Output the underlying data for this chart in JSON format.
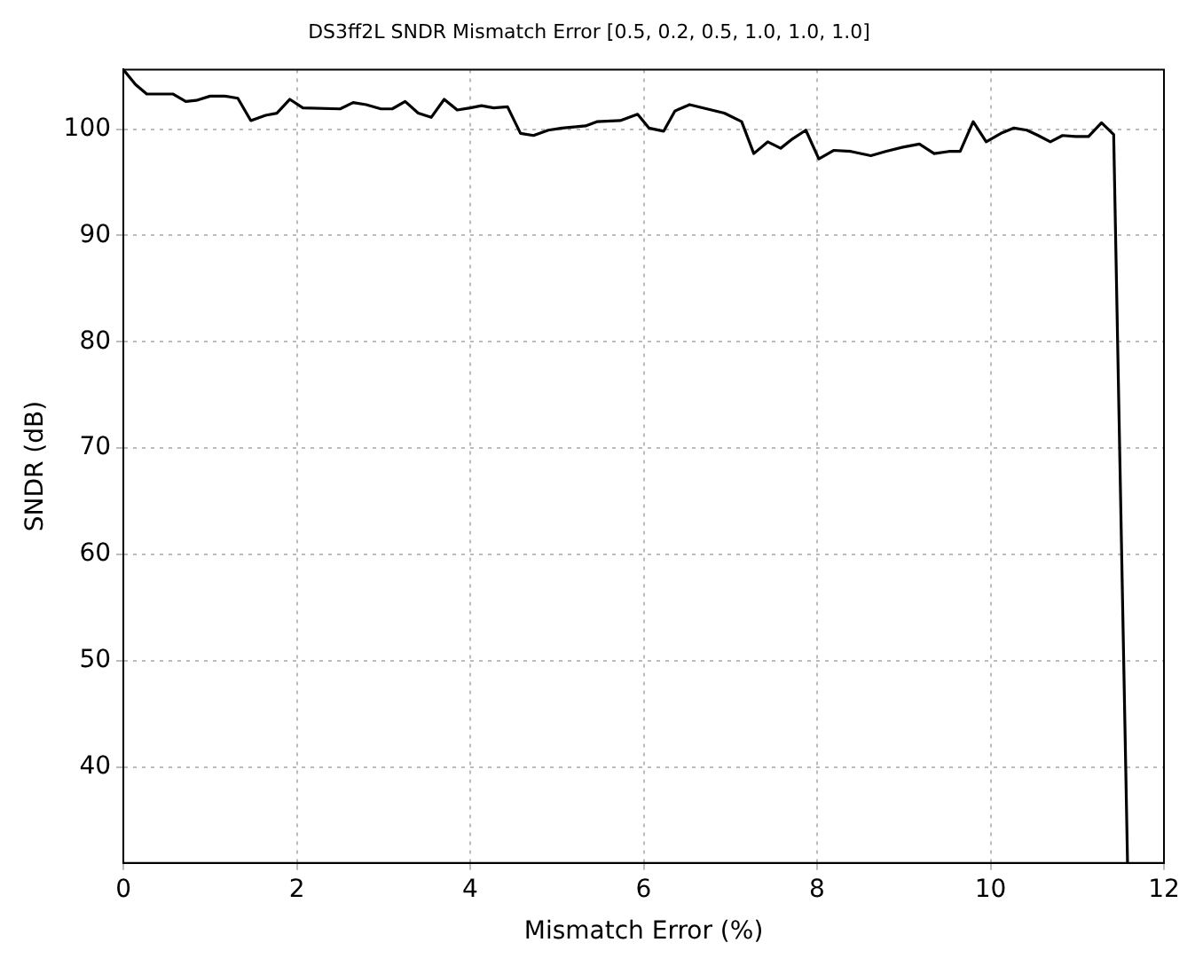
{
  "chart_data": {
    "type": "line",
    "title": "DS3ff2L SNDR Mismatch Error [0.5, 0.2, 0.5, 1.0, 1.0, 1.0]",
    "xlabel": "Mismatch Error (%)",
    "ylabel": "SNDR (dB)",
    "x": [
      0,
      0.14,
      0.27,
      0.57,
      0.72,
      0.84,
      1.0,
      1.17,
      1.32,
      1.47,
      1.64,
      1.77,
      1.92,
      2.07,
      2.5,
      2.65,
      2.8,
      2.97,
      3.1,
      3.25,
      3.4,
      3.55,
      3.7,
      3.85,
      4.0,
      4.13,
      4.27,
      4.43,
      4.58,
      4.73,
      4.9,
      5.06,
      5.33,
      5.46,
      5.73,
      5.93,
      6.06,
      6.23,
      6.36,
      6.53,
      6.73,
      6.93,
      7.13,
      7.27,
      7.43,
      7.58,
      7.72,
      7.87,
      8.02,
      8.19,
      8.39,
      8.62,
      8.79,
      8.99,
      9.18,
      9.35,
      9.52,
      9.65,
      9.8,
      9.95,
      10.12,
      10.27,
      10.42,
      10.55,
      10.69,
      10.83,
      10.98,
      11.13,
      11.28,
      11.42,
      11.58
    ],
    "series": [
      {
        "color": "#000000",
        "values": [
          105.6,
          104.2,
          103.3,
          103.3,
          102.6,
          102.7,
          103.1,
          103.1,
          102.9,
          100.8,
          101.3,
          101.5,
          102.8,
          102.0,
          101.9,
          102.5,
          102.3,
          101.9,
          101.9,
          102.6,
          101.5,
          101.1,
          102.8,
          101.8,
          102.0,
          102.2,
          102.0,
          102.1,
          99.6,
          99.4,
          99.9,
          100.1,
          100.3,
          100.7,
          100.8,
          101.4,
          100.1,
          99.8,
          101.7,
          102.3,
          101.9,
          101.5,
          100.7,
          97.7,
          98.8,
          98.2,
          99.1,
          99.9,
          97.2,
          98.0,
          97.9,
          97.5,
          97.9,
          98.3,
          98.6,
          97.7,
          97.9,
          97.9,
          100.7,
          98.8,
          99.6,
          100.1,
          99.9,
          99.4,
          98.8,
          99.4,
          99.3,
          99.3,
          100.6,
          99.5,
          31
        ]
      }
    ],
    "xlim": [
      0,
      12
    ],
    "xticks": [
      0,
      2,
      4,
      6,
      8,
      10,
      12
    ],
    "ylim": [
      31,
      105.6
    ],
    "yticks": [
      40,
      50,
      60,
      70,
      80,
      90,
      100
    ],
    "grid": true,
    "marker": "none",
    "line_style": "solid"
  }
}
